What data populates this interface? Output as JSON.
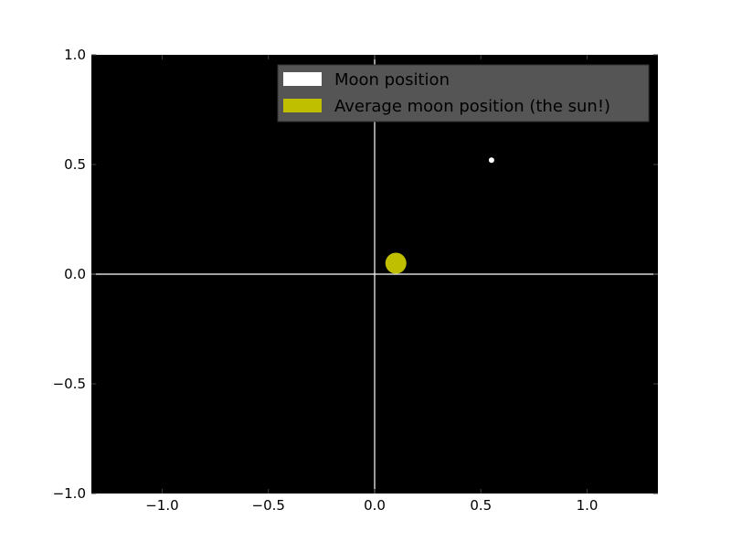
{
  "chart_data": {
    "type": "scatter",
    "title": "",
    "xlabel": "",
    "ylabel": "",
    "xlim": [
      -1.333,
      1.333
    ],
    "ylim": [
      -1.0,
      1.0
    ],
    "x_ticks": [
      -1.0,
      -0.5,
      0.0,
      0.5,
      1.0
    ],
    "y_ticks": [
      -1.0,
      -0.5,
      0.0,
      0.5,
      1.0
    ],
    "x_tick_labels": [
      "−1.0",
      "−0.5",
      "0.0",
      "0.5",
      "1.0"
    ],
    "y_tick_labels": [
      "−1.0",
      "−0.5",
      "0.0",
      "0.5",
      "1.0"
    ],
    "background": "#000000",
    "grid": false,
    "reference_lines": {
      "x": 0,
      "y": 0,
      "color": "#ffffff"
    },
    "legend_position": "top-right",
    "series": [
      {
        "name": "Moon position",
        "color": "#ffffff",
        "points": [
          {
            "x": 0.55,
            "y": 0.52
          }
        ],
        "marker": "small"
      },
      {
        "name": "Average moon position (the sun!)",
        "color": "#bfbf00",
        "points": [
          {
            "x": 0.1,
            "y": 0.05
          }
        ],
        "marker": "large"
      }
    ]
  }
}
